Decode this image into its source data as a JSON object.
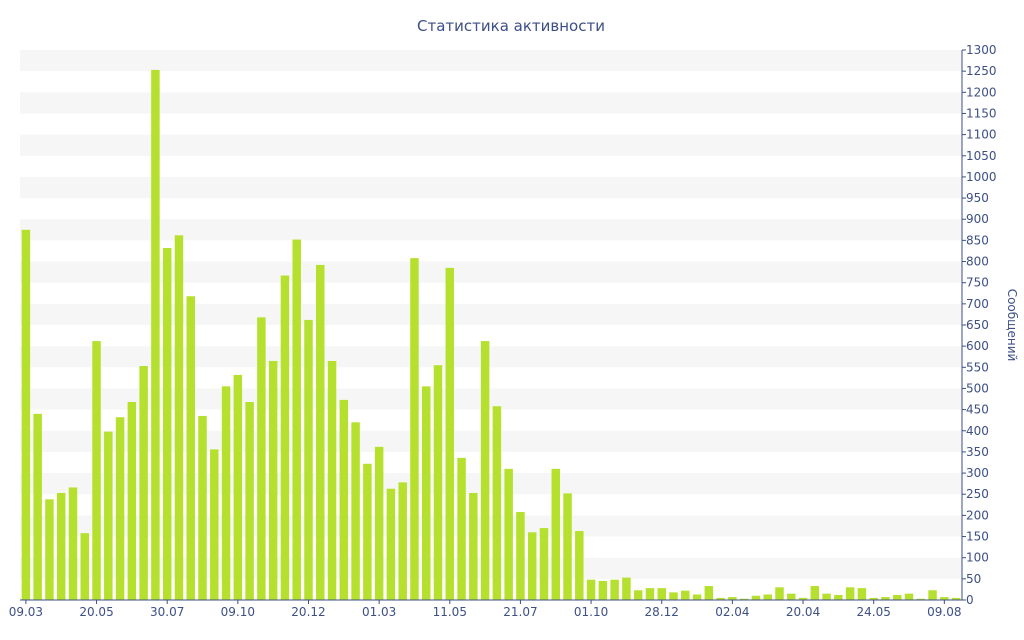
{
  "chart_data": {
    "type": "bar",
    "title": "Статистика активности",
    "ylabel": "Сообщений",
    "ylim": [
      0,
      1300
    ],
    "yticks": [
      0,
      50,
      100,
      150,
      200,
      250,
      300,
      350,
      400,
      450,
      500,
      550,
      600,
      650,
      700,
      750,
      800,
      850,
      900,
      950,
      1000,
      1050,
      1100,
      1150,
      1200,
      1250,
      1300
    ],
    "xtick_labels": [
      {
        "index": 0,
        "label": "09.03"
      },
      {
        "index": 6,
        "label": "20.05"
      },
      {
        "index": 12,
        "label": "30.07"
      },
      {
        "index": 18,
        "label": "09.10"
      },
      {
        "index": 24,
        "label": "20.12"
      },
      {
        "index": 30,
        "label": "01.03"
      },
      {
        "index": 36,
        "label": "11.05"
      },
      {
        "index": 42,
        "label": "21.07"
      },
      {
        "index": 48,
        "label": "01.10"
      },
      {
        "index": 54,
        "label": "28.12"
      },
      {
        "index": 60,
        "label": "02.04"
      },
      {
        "index": 66,
        "label": "20.04"
      },
      {
        "index": 72,
        "label": "24.05"
      },
      {
        "index": 78,
        "label": "09.08"
      }
    ],
    "values": [
      875,
      440,
      238,
      253,
      266,
      158,
      612,
      398,
      432,
      468,
      553,
      1253,
      832,
      862,
      718,
      435,
      356,
      505,
      532,
      468,
      668,
      565,
      767,
      852,
      662,
      792,
      565,
      473,
      420,
      322,
      362,
      263,
      278,
      808,
      505,
      555,
      785,
      336,
      253,
      612,
      458,
      310,
      208,
      160,
      170,
      310,
      252,
      163,
      48,
      45,
      48,
      53,
      23,
      28,
      28,
      18,
      22,
      13,
      33,
      5,
      7,
      3,
      10,
      13,
      30,
      15,
      5,
      33,
      15,
      12,
      30,
      28,
      5,
      7,
      12,
      15,
      3,
      23,
      7,
      5
    ],
    "bar_color": "#b5e02e",
    "grid": "alternating horizontal bands",
    "band_color": "#f6f6f6",
    "axis_color": "#3d4f86",
    "y_axis_position": "right"
  }
}
